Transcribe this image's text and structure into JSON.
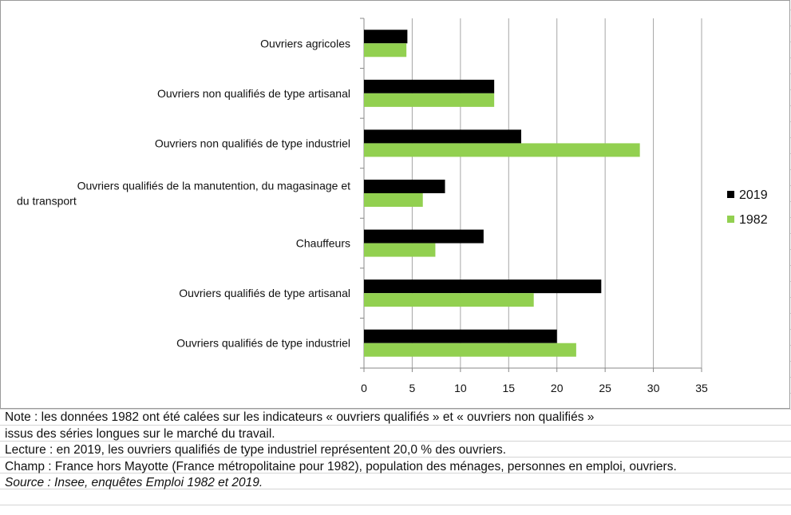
{
  "chart_data": {
    "type": "bar",
    "orientation": "horizontal",
    "categories": [
      "Ouvriers agricoles",
      "Ouvriers non qualifiés de type artisanal",
      "Ouvriers non qualifiés de type industriel",
      "Ouvriers qualifiés de la manutention, du magasinage et du transport",
      "Chauffeurs",
      "Ouvriers qualifiés de type artisanal",
      "Ouvriers qualifiés de type industriel"
    ],
    "category_lines": [
      [
        "Ouvriers agricoles"
      ],
      [
        "Ouvriers non qualifiés de type artisanal"
      ],
      [
        "Ouvriers non qualifiés de type industriel"
      ],
      [
        "Ouvriers qualifiés de la manutention, du magasinage et",
        "du transport"
      ],
      [
        "Chauffeurs"
      ],
      [
        "Ouvriers qualifiés de type artisanal"
      ],
      [
        "Ouvriers qualifiés de type industriel"
      ]
    ],
    "series": [
      {
        "name": "2019",
        "color": "#000000",
        "values": [
          4.5,
          13.5,
          16.3,
          8.4,
          12.4,
          24.6,
          20.0
        ]
      },
      {
        "name": "1982",
        "color": "#92d050",
        "values": [
          4.4,
          13.5,
          28.6,
          6.1,
          7.4,
          17.6,
          22.0
        ]
      }
    ],
    "xlim": [
      0,
      35
    ],
    "xticks": [
      "0",
      "5",
      "10",
      "15",
      "20",
      "25",
      "30",
      "35"
    ],
    "grid": true,
    "legend": "right",
    "title": "",
    "xlabel": "",
    "ylabel": ""
  },
  "notes": [
    "Note : les données 1982 ont été calées sur les indicateurs « ouvriers qualifiés » et « ouvriers non qualifiés »",
    "issus des séries longues sur le marché du travail.",
    "Lecture : en 2019, les ouvriers qualifiés de type industriel représentent 20,0 % des ouvriers.",
    "Champ : France hors Mayotte (France métropolitaine pour 1982), population des ménages, personnes en emploi, ouvriers."
  ],
  "source": "Source : Insee, enquêtes Emploi 1982 et 2019."
}
